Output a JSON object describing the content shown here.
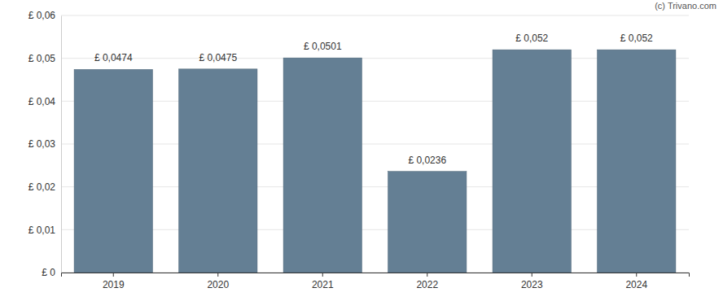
{
  "chart_data": {
    "type": "bar",
    "annotation": "(c) Trivano.com",
    "categories": [
      "2019",
      "2020",
      "2021",
      "2022",
      "2023",
      "2024"
    ],
    "values": [
      0.0474,
      0.0475,
      0.0501,
      0.0236,
      0.052,
      0.052
    ],
    "value_labels": [
      "£ 0,0474",
      "£ 0,0475",
      "£ 0,0501",
      "£ 0,0236",
      "£ 0,052",
      "£ 0,052"
    ],
    "data_labels": true,
    "color": "#647f94",
    "ylim": [
      0,
      0.06
    ],
    "yticks": [
      {
        "value": 0,
        "label": "£ 0"
      },
      {
        "value": 0.01,
        "label": "£ 0,01"
      },
      {
        "value": 0.02,
        "label": "£ 0,02"
      },
      {
        "value": 0.03,
        "label": "£ 0,03"
      },
      {
        "value": 0.04,
        "label": "£ 0,04"
      },
      {
        "value": 0.05,
        "label": "£ 0,05"
      },
      {
        "value": 0.06,
        "label": "£ 0,06"
      }
    ],
    "grid": true
  }
}
